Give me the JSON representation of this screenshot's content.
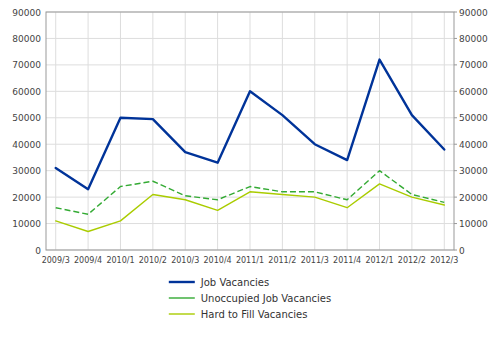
{
  "chart_data": {
    "type": "line",
    "categories": [
      "2009/3",
      "2009/4",
      "2010/1",
      "2010/2",
      "2010/3",
      "2010/4",
      "2011/1",
      "2011/2",
      "2011/3",
      "2011/4",
      "2012/1",
      "2012/2",
      "2012/3"
    ],
    "series": [
      {
        "name": "Job Vacancies",
        "color": "#003399",
        "line_style": "solid",
        "values": [
          31000,
          23000,
          50000,
          49500,
          37000,
          33000,
          60000,
          51000,
          40000,
          34000,
          72000,
          51000,
          38000
        ]
      },
      {
        "name": "Unoccupied Job Vacancies",
        "color": "#33aa33",
        "line_style": "dashed",
        "values": [
          16000,
          13500,
          24000,
          26000,
          20500,
          19000,
          24000,
          22000,
          22000,
          19000,
          30000,
          21000,
          18000
        ]
      },
      {
        "name": "Hard to Fill Vacancies",
        "color": "#aacc00",
        "line_style": "solid",
        "values": [
          11000,
          7000,
          11000,
          21000,
          19000,
          15000,
          22000,
          21000,
          20000,
          16000,
          25000,
          20000,
          17000
        ]
      }
    ],
    "ylim": [
      0,
      90000
    ],
    "yticks": [
      0,
      10000,
      20000,
      30000,
      40000,
      50000,
      60000,
      70000,
      80000,
      90000
    ],
    "y2lim": [
      0,
      90000
    ],
    "y2ticks": [
      0,
      10000,
      20000,
      30000,
      40000,
      50000,
      60000,
      70000,
      80000,
      90000
    ],
    "grid": true,
    "legend": "bottom"
  }
}
